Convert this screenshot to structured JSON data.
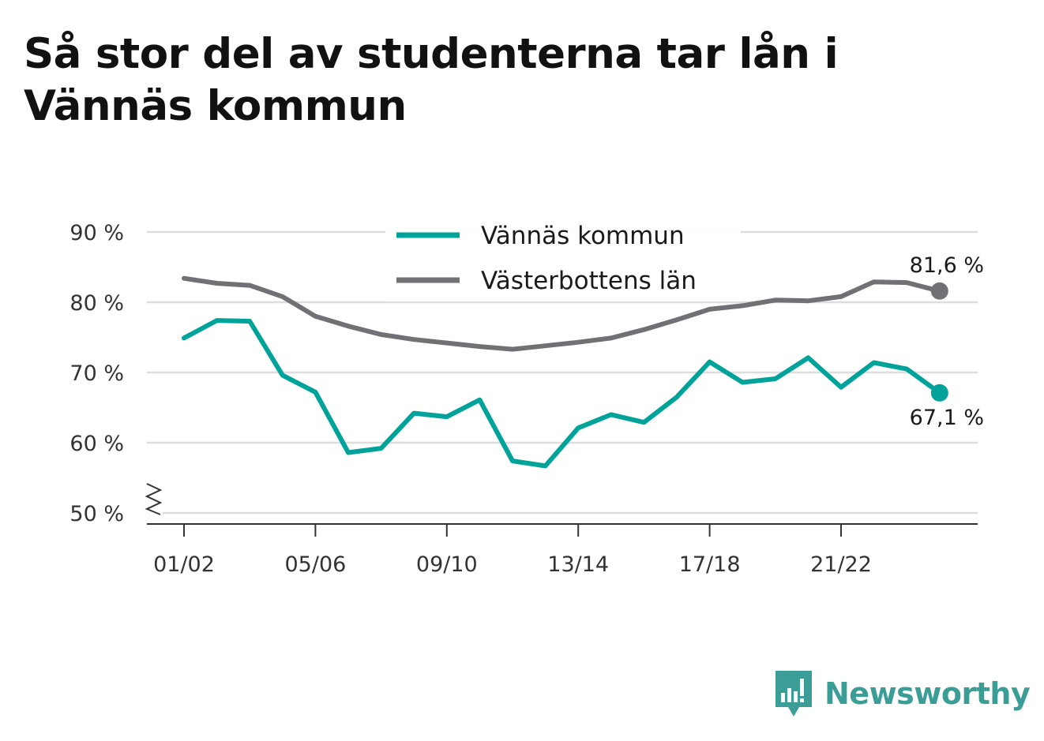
{
  "title": "Så stor del av studenterna tar lån i Vännäs kommun",
  "brand": "Newsworthy",
  "chart_data": {
    "type": "line",
    "y_ticks": [
      "50 %",
      "60 %",
      "70 %",
      "80 %",
      "90 %"
    ],
    "y_tick_values": [
      50,
      60,
      70,
      80,
      90
    ],
    "ylim": [
      50,
      90
    ],
    "y_axis_break": true,
    "x_ticks": [
      "01/02",
      "05/06",
      "09/10",
      "13/14",
      "17/18",
      "21/22"
    ],
    "categories": [
      "01/02",
      "02/03",
      "03/04",
      "04/05",
      "05/06",
      "06/07",
      "07/08",
      "08/09",
      "09/10",
      "10/11",
      "11/12",
      "12/13",
      "13/14",
      "14/15",
      "15/16",
      "16/17",
      "17/18",
      "18/19",
      "19/20",
      "20/21",
      "21/22",
      "22/23",
      "23/24",
      "24/25"
    ],
    "legend_position": "top-center",
    "grid": true,
    "series": [
      {
        "name": "Vännäs kommun",
        "color": "#00a399",
        "values": [
          74.9,
          77.4,
          77.3,
          69.6,
          67.2,
          58.6,
          59.2,
          64.2,
          63.7,
          66.1,
          57.4,
          56.7,
          62.1,
          64.0,
          62.9,
          66.5,
          71.5,
          68.6,
          69.1,
          72.1,
          67.9,
          71.4,
          70.5,
          67.1
        ],
        "end_label": "67,1 %"
      },
      {
        "name": "Västerbottens län",
        "color": "#717075",
        "values": [
          83.4,
          82.7,
          82.4,
          80.8,
          78.0,
          76.6,
          75.4,
          74.7,
          74.2,
          73.7,
          73.3,
          73.8,
          74.3,
          74.9,
          76.1,
          77.5,
          79.0,
          79.5,
          80.3,
          80.2,
          80.8,
          82.9,
          82.8,
          81.6
        ],
        "end_label": "81,6 %"
      }
    ]
  }
}
